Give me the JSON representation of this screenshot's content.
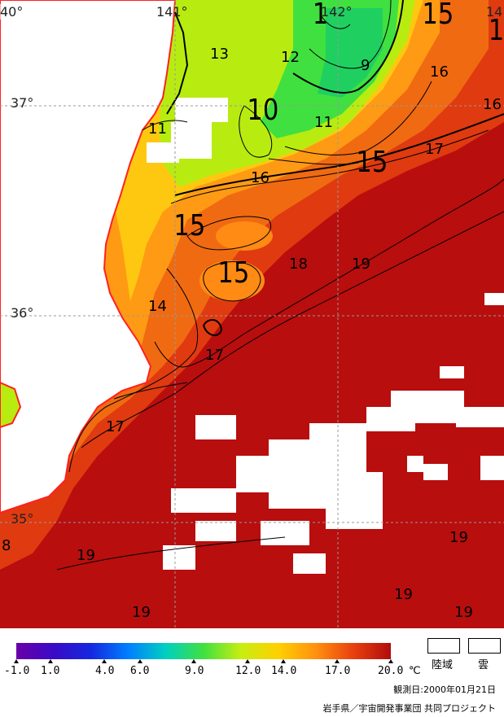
{
  "map": {
    "grid_lon_labels": [
      "40°",
      "141°",
      "142°",
      "14"
    ],
    "grid_lat_labels": [
      "37°",
      "36°",
      "35°"
    ],
    "contour_labels": [
      {
        "text": "13",
        "size": "m"
      },
      {
        "text": "12",
        "size": "m"
      },
      {
        "text": "9",
        "size": "m"
      },
      {
        "text": "16",
        "size": "m"
      },
      {
        "text": "16",
        "size": "m"
      },
      {
        "text": "16",
        "size": "m"
      },
      {
        "text": "15",
        "size": "xl"
      },
      {
        "text": "10",
        "size": "xl"
      },
      {
        "text": "11",
        "size": "m"
      },
      {
        "text": "11",
        "size": "m"
      },
      {
        "text": "17",
        "size": "m"
      },
      {
        "text": "15",
        "size": "xl"
      },
      {
        "text": "15",
        "size": "xl"
      },
      {
        "text": "15",
        "size": "xl"
      },
      {
        "text": "18",
        "size": "m"
      },
      {
        "text": "19",
        "size": "m"
      },
      {
        "text": "14",
        "size": "m"
      },
      {
        "text": "17",
        "size": "m"
      },
      {
        "text": "17",
        "size": "m"
      },
      {
        "text": "8",
        "size": "m"
      },
      {
        "text": "19",
        "size": "m"
      },
      {
        "text": "19",
        "size": "m"
      },
      {
        "text": "19",
        "size": "m"
      },
      {
        "text": "19",
        "size": "m"
      },
      {
        "text": "19",
        "size": "m"
      },
      {
        "text": "1",
        "size": "xl"
      },
      {
        "text": "1",
        "size": "xl"
      }
    ]
  },
  "colors": {
    "land": "#ffffff",
    "coast": "#ff2020",
    "sst_colorscale": [
      "#6a00a8",
      "#2a1ad6",
      "#1a58ff",
      "#00b2ff",
      "#00e0a0",
      "#40e040",
      "#b8ec10",
      "#ffe000",
      "#ffb000",
      "#ff6a10",
      "#e62a0e",
      "#b80e0e"
    ]
  },
  "legend": {
    "ticks": [
      "-1.0",
      "1.0",
      "4.0",
      "6.0",
      "9.0",
      "12.0",
      "14.0",
      "17.0",
      "20.0"
    ],
    "unit": "℃",
    "land_label": "陸域",
    "cloud_label": "雲"
  },
  "footer": {
    "observation_date": "観測日:2000年01月21日",
    "credit": "岩手県／宇宙開発事業団 共同プロジェクト"
  }
}
